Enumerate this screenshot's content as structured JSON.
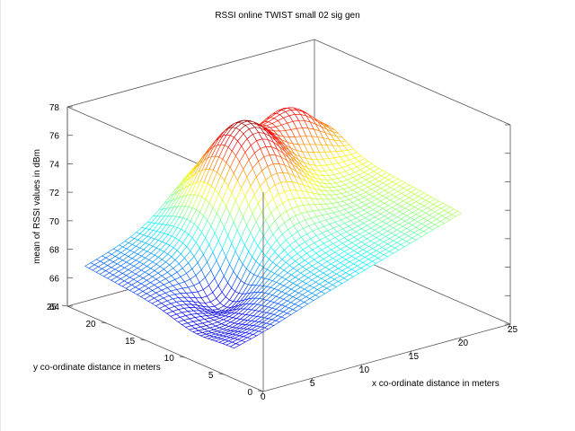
{
  "chart_data": {
    "type": "surface",
    "title": "RSSI online TWIST small 02 sig gen",
    "xlabel": "x co-ordinate distance in meters",
    "ylabel": "y co-ordinate distance in meters",
    "zlabel": "mean of RSSI values in dBm",
    "xlim": [
      0,
      25
    ],
    "ylim": [
      0,
      25
    ],
    "zlim": [
      64,
      78
    ],
    "x_ticks": [
      "0",
      "5",
      "10",
      "15",
      "20",
      "25"
    ],
    "y_ticks": [
      "0",
      "5",
      "10",
      "15",
      "20",
      "25"
    ],
    "z_ticks": [
      "64",
      "66",
      "68",
      "70",
      "72",
      "74",
      "76",
      "78"
    ],
    "colormap": "jet",
    "grid": false,
    "approx_peak": {
      "x": 13,
      "y": 19,
      "z": 75.5
    },
    "approx_min": {
      "x": 1,
      "y": 13,
      "z": 64.5
    }
  }
}
